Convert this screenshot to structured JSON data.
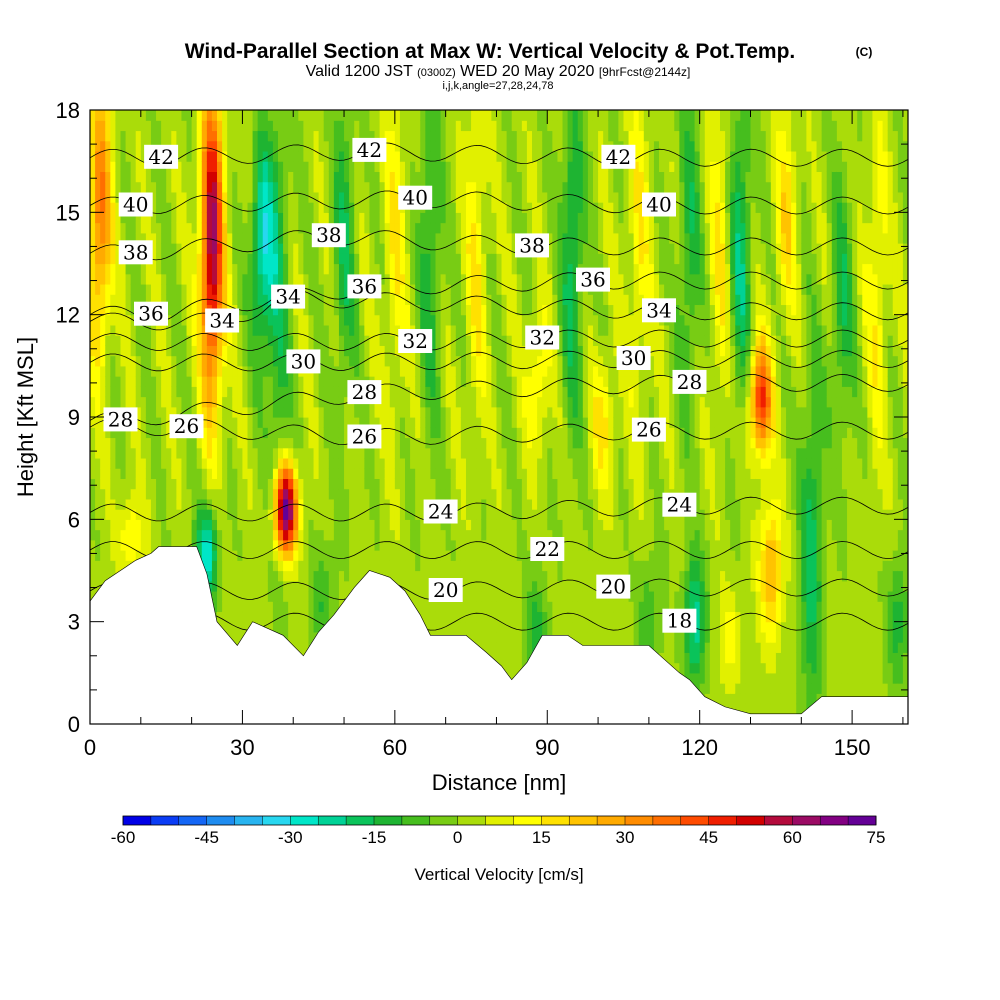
{
  "chart_data": {
    "type": "heatmap",
    "title": "Wind-Parallel Section at Max W: Vertical Velocity & Pot.Temp.",
    "title_tag": "(C)",
    "subtitle_a": "Valid 1200 JST",
    "subtitle_b": "(0300Z)",
    "subtitle_c": "WED 20 May 2020",
    "subtitle_d": "[9hrFcst@2144z]",
    "subtitle_line3": "i,j,k,angle=27,28,24,78",
    "xlabel": "Distance [nm]",
    "ylabel": "Height [Kft MSL]",
    "xlim": [
      0,
      161
    ],
    "ylim": [
      0,
      18
    ],
    "x_ticks": [
      0,
      30,
      60,
      90,
      120,
      150
    ],
    "y_ticks": [
      0,
      3,
      6,
      9,
      12,
      15,
      18
    ],
    "x_minor_step": 10,
    "y_minor_step": 1,
    "colorbar": {
      "label": "Vertical Velocity [cm/s]",
      "min": -60,
      "max": 75,
      "step": 5,
      "tick_labels": [
        "-60",
        "-45",
        "-30",
        "-15",
        "0",
        "15",
        "30",
        "45",
        "60",
        "75"
      ],
      "colors": [
        "#0000e6",
        "#0a3cf5",
        "#1466f5",
        "#1e8cf0",
        "#28b4f0",
        "#28d7f0",
        "#00e6c8",
        "#00d296",
        "#0ac35a",
        "#1eb432",
        "#46be1e",
        "#78cc14",
        "#aadc0a",
        "#e1f000",
        "#ffff00",
        "#ffe100",
        "#ffc300",
        "#ffaa00",
        "#ff8c00",
        "#ff6e00",
        "#ff4b00",
        "#f01e00",
        "#d20000",
        "#b40a3c",
        "#9b0a64",
        "#820082",
        "#640096"
      ]
    },
    "velocity_columns": [
      {
        "x": 2,
        "w": 34,
        "zc": 15,
        "zw": 4
      },
      {
        "x": 24,
        "w": 60,
        "zc": 14,
        "zw": 4.5
      },
      {
        "x": 34,
        "w": -30,
        "zc": 14,
        "zw": 3
      },
      {
        "x": 37,
        "w": -15,
        "zc": 12,
        "zw": 7
      },
      {
        "x": 38.5,
        "w": 72,
        "zc": 6.3,
        "zw": 1.3
      },
      {
        "x": 23,
        "w": -30,
        "zc": 5,
        "zw": 1.5
      },
      {
        "x": 8,
        "w": 15,
        "zc": 5.5,
        "zw": 1.2
      },
      {
        "x": 50,
        "w": -15,
        "zc": 14,
        "zw": 5
      },
      {
        "x": 60,
        "w": 12,
        "zc": 14,
        "zw": 5
      },
      {
        "x": 67,
        "w": -15,
        "zc": 14,
        "zw": 5
      },
      {
        "x": 76,
        "w": 12,
        "zc": 14,
        "zw": 5
      },
      {
        "x": 88,
        "w": 15,
        "zc": 10,
        "zw": 2
      },
      {
        "x": 95,
        "w": -20,
        "zc": 14,
        "zw": 5
      },
      {
        "x": 101,
        "w": 15,
        "zc": 9,
        "zw": 2
      },
      {
        "x": 108,
        "w": 12,
        "zc": 14,
        "zw": 5
      },
      {
        "x": 118,
        "w": -15,
        "zc": 14,
        "zw": 5
      },
      {
        "x": 124,
        "w": 12,
        "zc": 14,
        "zw": 5
      },
      {
        "x": 128,
        "w": -20,
        "zc": 14,
        "zw": 5
      },
      {
        "x": 132,
        "w": 45,
        "zc": 9.5,
        "zw": 1.6
      },
      {
        "x": 134,
        "w": 25,
        "zc": 4.5,
        "zw": 2
      },
      {
        "x": 137,
        "w": 15,
        "zc": 15,
        "zw": 3
      },
      {
        "x": 142,
        "w": -20,
        "zc": 5,
        "zw": 5
      },
      {
        "x": 148,
        "w": -15,
        "zc": 12,
        "zw": 4
      },
      {
        "x": 155,
        "w": 12,
        "zc": 13,
        "zw": 5
      },
      {
        "x": 159,
        "w": -15,
        "zc": 3,
        "zw": 2
      },
      {
        "x": 119,
        "w": -25,
        "zc": 3,
        "zw": 2
      },
      {
        "x": 126,
        "w": 10,
        "zc": 2.5,
        "zw": 1.5
      },
      {
        "x": 88,
        "w": -15,
        "zc": 2.5,
        "zw": 2
      },
      {
        "x": 110,
        "w": -12,
        "zc": 3,
        "zw": 2
      },
      {
        "x": 46,
        "w": -12,
        "zc": 3.5,
        "zw": 2
      }
    ],
    "theta_contour_labels": [
      {
        "text": "42",
        "x": 14,
        "y": 16.6
      },
      {
        "text": "42",
        "x": 55,
        "y": 16.8
      },
      {
        "text": "42",
        "x": 104,
        "y": 16.6
      },
      {
        "text": "40",
        "x": 9,
        "y": 15.2
      },
      {
        "text": "40",
        "x": 64,
        "y": 15.4
      },
      {
        "text": "40",
        "x": 112,
        "y": 15.2
      },
      {
        "text": "38",
        "x": 9,
        "y": 13.8
      },
      {
        "text": "38",
        "x": 47,
        "y": 14.3
      },
      {
        "text": "38",
        "x": 87,
        "y": 14.0
      },
      {
        "text": "36",
        "x": 12,
        "y": 12.0
      },
      {
        "text": "36",
        "x": 54,
        "y": 12.8
      },
      {
        "text": "36",
        "x": 99,
        "y": 13.0
      },
      {
        "text": "34",
        "x": 26,
        "y": 11.8
      },
      {
        "text": "34",
        "x": 39,
        "y": 12.5
      },
      {
        "text": "34",
        "x": 112,
        "y": 12.1
      },
      {
        "text": "32",
        "x": 64,
        "y": 11.2
      },
      {
        "text": "32",
        "x": 89,
        "y": 11.3
      },
      {
        "text": "30",
        "x": 42,
        "y": 10.6
      },
      {
        "text": "30",
        "x": 107,
        "y": 10.7
      },
      {
        "text": "28",
        "x": 6,
        "y": 8.9
      },
      {
        "text": "28",
        "x": 54,
        "y": 9.7
      },
      {
        "text": "28",
        "x": 118,
        "y": 10.0
      },
      {
        "text": "26",
        "x": 19,
        "y": 8.7
      },
      {
        "text": "26",
        "x": 54,
        "y": 8.4
      },
      {
        "text": "26",
        "x": 110,
        "y": 8.6
      },
      {
        "text": "24",
        "x": 69,
        "y": 6.2
      },
      {
        "text": "24",
        "x": 116,
        "y": 6.4
      },
      {
        "text": "22",
        "x": 90,
        "y": 5.1
      },
      {
        "text": "20",
        "x": 70,
        "y": 3.9
      },
      {
        "text": "20",
        "x": 103,
        "y": 4.0
      },
      {
        "text": "18",
        "x": 116,
        "y": 3.0
      }
    ],
    "terrain": [
      [
        0,
        3.6
      ],
      [
        3,
        4.2
      ],
      [
        6,
        4.5
      ],
      [
        9,
        4.8
      ],
      [
        12,
        5.0
      ],
      [
        13.5,
        5.2
      ],
      [
        21,
        5.2
      ],
      [
        23,
        4.4
      ],
      [
        25,
        3.0
      ],
      [
        29,
        2.3
      ],
      [
        32,
        3.0
      ],
      [
        38,
        2.6
      ],
      [
        42,
        2.0
      ],
      [
        45,
        2.7
      ],
      [
        48,
        3.2
      ],
      [
        52,
        4.0
      ],
      [
        55,
        4.5
      ],
      [
        59,
        4.3
      ],
      [
        62,
        3.9
      ],
      [
        65,
        3.2
      ],
      [
        67,
        2.6
      ],
      [
        74,
        2.6
      ],
      [
        78,
        2.1
      ],
      [
        81,
        1.7
      ],
      [
        83,
        1.3
      ],
      [
        86,
        1.8
      ],
      [
        89,
        2.6
      ],
      [
        94,
        2.6
      ],
      [
        97,
        2.3
      ],
      [
        110,
        2.3
      ],
      [
        113,
        1.9
      ],
      [
        116,
        1.5
      ],
      [
        118,
        1.3
      ],
      [
        121,
        0.8
      ],
      [
        125,
        0.5
      ],
      [
        130,
        0.3
      ],
      [
        140,
        0.3
      ],
      [
        144,
        0.8
      ],
      [
        150,
        0.8
      ],
      [
        161,
        0.8
      ]
    ]
  }
}
